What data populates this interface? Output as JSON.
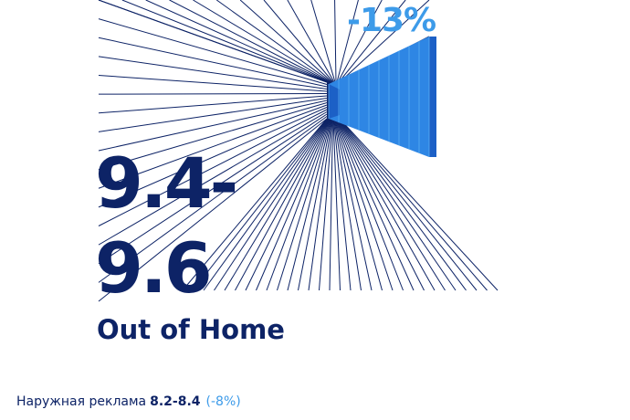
{
  "headline": {
    "change": "-13%",
    "range_line1": "9.4-",
    "range_line2": "9.6",
    "category": "Out of Home"
  },
  "footer": {
    "label": "Наружная реклама",
    "value": "8.2-8.4",
    "change": "(-8%)"
  },
  "colors": {
    "navy": "#0d2366",
    "accent": "#3d9be9",
    "box_front": "#2e86e4",
    "box_side": "#1c60c6"
  }
}
